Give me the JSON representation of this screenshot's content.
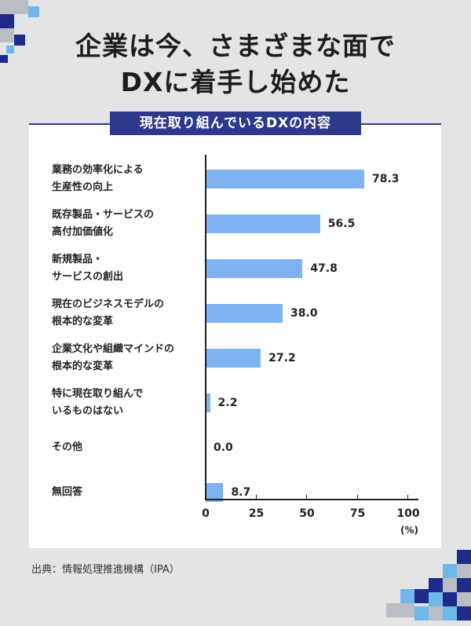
{
  "header": {
    "title_line1": "企業は今、さまざまな面で",
    "title_line2": "DXに着手し始めた"
  },
  "chart_data": {
    "type": "bar",
    "orientation": "horizontal",
    "title": "現在取り組んでいるDXの内容",
    "categories": [
      "業務の効率化による\n生産性の向上",
      "既存製品・サービスの\n高付加価値化",
      "新規製品・\nサービスの創出",
      "現在のビジネスモデルの\n根本的な変革",
      "企業文化や組織マインドの\n根本的な変革",
      "特に現在取り組んで\nいるものはない",
      "その他",
      "無回答"
    ],
    "values": [
      78.3,
      56.5,
      47.8,
      38.0,
      27.2,
      2.2,
      0.0,
      8.7
    ],
    "value_labels": [
      "78.3",
      "56.5",
      "47.8",
      "38.0",
      "27.2",
      "2.2",
      "0.0",
      "8.7"
    ],
    "xlim": [
      0,
      100
    ],
    "ticks": [
      0,
      25,
      50,
      75,
      100
    ],
    "tick_labels": [
      "0",
      "25",
      "50",
      "75",
      "100"
    ],
    "xlabel": "(%)",
    "grid": false,
    "bar_color": "#7fb2f0"
  },
  "footer": {
    "source": "出典：情報処理推進機構（IPA）"
  },
  "colors": {
    "background": "#e3e4e6",
    "accent": "#2d3a8c",
    "pixel_dark": "#1f2a8a",
    "pixel_light": "#6fb8e8",
    "pixel_gray": "#b9bdc4"
  }
}
